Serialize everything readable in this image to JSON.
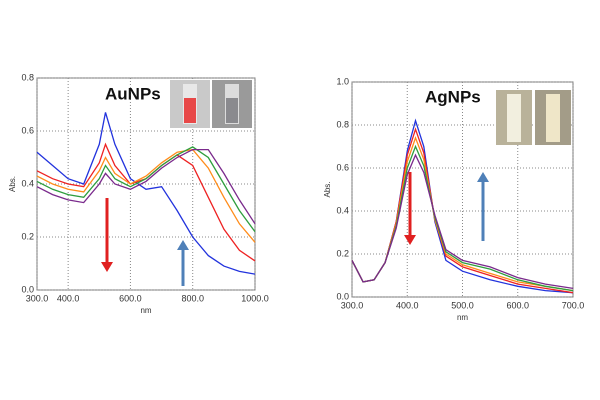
{
  "chart_data": [
    {
      "type": "line",
      "title": "AuNPs",
      "xlabel": "nm",
      "ylabel": "Abs.",
      "x": [
        300,
        350,
        400,
        450,
        500,
        520,
        550,
        600,
        650,
        700,
        750,
        800,
        850,
        900,
        950,
        1000
      ],
      "series": [
        {
          "color": "#2233dd",
          "values": [
            0.52,
            0.47,
            0.42,
            0.4,
            0.55,
            0.67,
            0.55,
            0.42,
            0.38,
            0.39,
            0.3,
            0.2,
            0.13,
            0.09,
            0.07,
            0.06
          ]
        },
        {
          "color": "#ee2222",
          "values": [
            0.45,
            0.42,
            0.4,
            0.39,
            0.48,
            0.55,
            0.47,
            0.4,
            0.42,
            0.47,
            0.51,
            0.47,
            0.35,
            0.23,
            0.15,
            0.11
          ]
        },
        {
          "color": "#ff8c1a",
          "values": [
            0.43,
            0.4,
            0.38,
            0.37,
            0.45,
            0.5,
            0.44,
            0.4,
            0.43,
            0.48,
            0.52,
            0.53,
            0.46,
            0.35,
            0.25,
            0.18
          ]
        },
        {
          "color": "#2e9e3e",
          "values": [
            0.41,
            0.38,
            0.36,
            0.35,
            0.42,
            0.47,
            0.42,
            0.39,
            0.42,
            0.47,
            0.51,
            0.54,
            0.5,
            0.4,
            0.3,
            0.22
          ]
        },
        {
          "color": "#7a2a8c",
          "values": [
            0.39,
            0.36,
            0.34,
            0.33,
            0.4,
            0.44,
            0.4,
            0.38,
            0.41,
            0.46,
            0.5,
            0.53,
            0.53,
            0.44,
            0.34,
            0.25
          ]
        }
      ],
      "xlim": [
        300,
        1000
      ],
      "ylim": [
        0,
        0.8
      ],
      "xticks": [
        {
          "value": 300,
          "label": "300.0"
        },
        {
          "value": 400,
          "label": "400.0"
        },
        {
          "value": 600,
          "label": "600.0"
        },
        {
          "value": 800,
          "label": "800.0"
        },
        {
          "value": 1000,
          "label": "1000.0"
        }
      ],
      "yticks": [
        {
          "value": 0,
          "label": "0.0"
        },
        {
          "value": 0.2,
          "label": "0.2"
        },
        {
          "value": 0.4,
          "label": "0.4"
        },
        {
          "value": 0.6,
          "label": "0.6"
        },
        {
          "value": 0.8,
          "label": "0.8"
        }
      ],
      "grid": true
    },
    {
      "type": "line",
      "title": "AgNPs",
      "xlabel": "nm",
      "ylabel": "Abs.",
      "x": [
        300,
        320,
        340,
        360,
        380,
        400,
        415,
        430,
        450,
        470,
        500,
        550,
        600,
        650,
        700
      ],
      "series": [
        {
          "color": "#2233dd",
          "values": [
            0.17,
            0.07,
            0.08,
            0.16,
            0.35,
            0.68,
            0.82,
            0.7,
            0.35,
            0.17,
            0.12,
            0.08,
            0.05,
            0.03,
            0.02
          ]
        },
        {
          "color": "#ee2222",
          "values": [
            0.17,
            0.07,
            0.08,
            0.16,
            0.35,
            0.66,
            0.78,
            0.67,
            0.36,
            0.19,
            0.14,
            0.1,
            0.06,
            0.04,
            0.02
          ]
        },
        {
          "color": "#ff8c1a",
          "values": [
            0.17,
            0.07,
            0.08,
            0.16,
            0.34,
            0.63,
            0.74,
            0.64,
            0.36,
            0.2,
            0.15,
            0.11,
            0.07,
            0.05,
            0.03
          ]
        },
        {
          "color": "#2e9e3e",
          "values": [
            0.17,
            0.07,
            0.08,
            0.16,
            0.33,
            0.6,
            0.7,
            0.61,
            0.37,
            0.21,
            0.16,
            0.13,
            0.08,
            0.05,
            0.03
          ]
        },
        {
          "color": "#7a2a8c",
          "values": [
            0.17,
            0.07,
            0.08,
            0.16,
            0.32,
            0.57,
            0.66,
            0.58,
            0.38,
            0.22,
            0.17,
            0.14,
            0.09,
            0.06,
            0.04
          ]
        }
      ],
      "xlim": [
        300,
        700
      ],
      "ylim": [
        0,
        1.0
      ],
      "xticks": [
        {
          "value": 300,
          "label": "300.0"
        },
        {
          "value": 400,
          "label": "400.0"
        },
        {
          "value": 500,
          "label": "500.0"
        },
        {
          "value": 600,
          "label": "600.0"
        },
        {
          "value": 700,
          "label": "700.0"
        }
      ],
      "yticks": [
        {
          "value": 0,
          "label": "0.0"
        },
        {
          "value": 0.2,
          "label": "0.2"
        },
        {
          "value": 0.4,
          "label": "0.4"
        },
        {
          "value": 0.6,
          "label": "0.6"
        },
        {
          "value": 0.8,
          "label": "0.8"
        },
        {
          "value": 1.0,
          "label": "1.0"
        }
      ],
      "grid": true
    }
  ]
}
